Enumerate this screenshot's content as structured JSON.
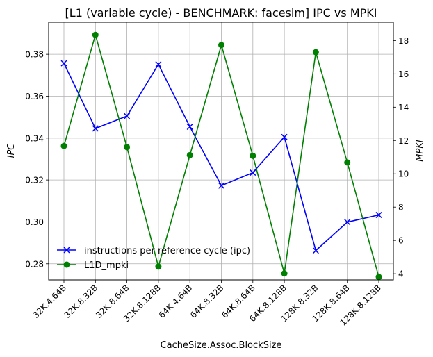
{
  "chart_data": {
    "type": "line",
    "title": "[L1 (variable cycle) - BENCHMARK: facesim]  IPC vs MPKI",
    "xlabel": "CacheSize.Assoc.BlockSize",
    "ylabel_left": "IPC",
    "ylabel_right": "MPKI",
    "categories": [
      "32K.4.64B",
      "32K.8.32B",
      "32K.8.64B",
      "32K.8.128B",
      "64K.4.64B",
      "64K.8.32B",
      "64K.8.64B",
      "64K.8.128B",
      "128K.8.32B",
      "128K.8.64B",
      "128K.8.128B"
    ],
    "ylim_left": [
      0.2723,
      0.3953
    ],
    "ylim_right": [
      3.63,
      19.1
    ],
    "yticks_left": [
      "0.28",
      "0.30",
      "0.32",
      "0.34",
      "0.36",
      "0.38"
    ],
    "yticks_left_values": [
      0.28,
      0.3,
      0.32,
      0.34,
      0.36,
      0.38
    ],
    "yticks_right": [
      "4",
      "6",
      "8",
      "10",
      "12",
      "14",
      "16",
      "18"
    ],
    "yticks_right_values": [
      4,
      6,
      8,
      10,
      12,
      14,
      16,
      18
    ],
    "grid": true,
    "legend_position": "lower-left",
    "series": [
      {
        "name": "instructions per reference cycle (ipc)",
        "axis": "left",
        "color": "#0000ff",
        "marker": "x",
        "values": [
          0.3757,
          0.3446,
          0.3505,
          0.3752,
          0.3454,
          0.3173,
          0.3235,
          0.3405,
          0.2863,
          0.2999,
          0.3033
        ]
      },
      {
        "name": "L1D_mpki",
        "axis": "right",
        "color": "#008000",
        "marker": "o",
        "values": [
          11.67,
          18.34,
          11.6,
          4.43,
          11.12,
          17.73,
          11.08,
          4.02,
          17.3,
          10.68,
          3.81
        ]
      }
    ]
  }
}
